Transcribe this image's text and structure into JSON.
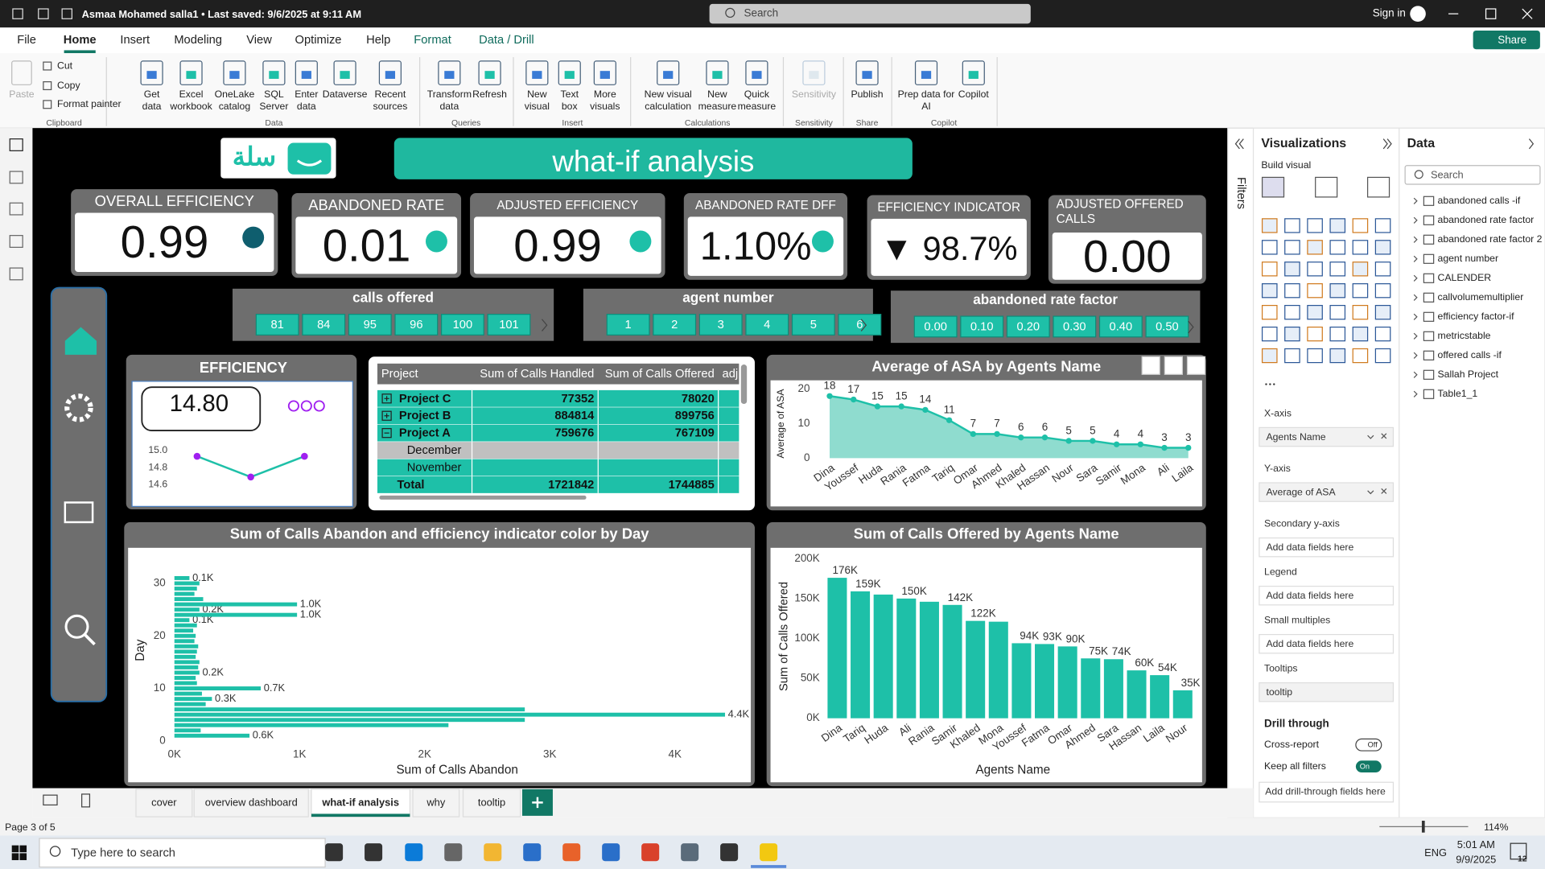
{
  "title_bar": {
    "file_status": "Asmaa Mohamed salla1 • Last saved: 9/6/2025 at 9:11 AM",
    "search": "Search",
    "sign_in": "Sign in"
  },
  "ribbon": {
    "tabs": [
      "File",
      "Home",
      "Insert",
      "Modeling",
      "View",
      "Optimize",
      "Help",
      "Format",
      "Data / Drill"
    ],
    "active_tab": 1,
    "share": "Share",
    "groups": [
      {
        "name": "Clipboard",
        "buttons": [
          [
            "Paste"
          ],
          [
            "Cut"
          ],
          [
            "Copy"
          ],
          [
            "Format painter"
          ]
        ]
      },
      {
        "name": "Data",
        "buttons": [
          [
            "Get",
            "data"
          ],
          [
            "Excel",
            "workbook"
          ],
          [
            "OneLake",
            "catalog"
          ],
          [
            "SQL",
            "Server"
          ],
          [
            "Enter",
            "data"
          ],
          [
            "Dataverse"
          ],
          [
            "Recent",
            "sources"
          ]
        ]
      },
      {
        "name": "Queries",
        "buttons": [
          [
            "Transform",
            "data"
          ],
          [
            "Refresh"
          ]
        ]
      },
      {
        "name": "Insert",
        "buttons": [
          [
            "New",
            "visual"
          ],
          [
            "Text",
            "box"
          ],
          [
            "More",
            "visuals"
          ]
        ]
      },
      {
        "name": "Calculations",
        "buttons": [
          [
            "New visual",
            "calculation"
          ],
          [
            "New",
            "measure"
          ],
          [
            "Quick",
            "measure"
          ]
        ]
      },
      {
        "name": "Sensitivity",
        "buttons": [
          [
            "Sensitivity"
          ]
        ]
      },
      {
        "name": "Share",
        "buttons": [
          [
            "Publish"
          ]
        ]
      },
      {
        "name": "Copilot",
        "buttons": [
          [
            "Prep data for",
            "AI"
          ],
          [
            "Copilot"
          ]
        ]
      }
    ]
  },
  "report": {
    "logo": "سلة",
    "title": "what-if analysis",
    "cards": [
      {
        "label": "OVERALL EFFICIENCY",
        "value": "0.99"
      },
      {
        "label": "ABANDONED RATE",
        "value": "0.01"
      },
      {
        "label": "ADJUSTED EFFICIENCY",
        "value": "0.99"
      },
      {
        "label": "ABANDONED RATE DFF",
        "value": "1.10%"
      },
      {
        "label": "EFFICIENCY INDICATOR",
        "value": "▼ 98.7%"
      },
      {
        "label": "ADJUSTED OFFERED CALLS",
        "value": "0.00"
      }
    ],
    "slicers": [
      {
        "title": "calls offered",
        "options": [
          "81",
          "84",
          "95",
          "96",
          "100",
          "101"
        ]
      },
      {
        "title": "agent number",
        "options": [
          "1",
          "2",
          "3",
          "4",
          "5",
          "6"
        ]
      },
      {
        "title": "abandoned rate factor",
        "options": [
          "0.00",
          "0.10",
          "0.20",
          "0.30",
          "0.40",
          "0.50"
        ]
      }
    ],
    "efficiency": {
      "title": "EFFICIENCY",
      "value": "14.80"
    },
    "table": {
      "columns": [
        "Project",
        "Sum of Calls Handled",
        "Sum of Calls Offered",
        "adj"
      ],
      "rows": [
        {
          "label": "Project C",
          "values": [
            77352,
            78020
          ],
          "expanded": false
        },
        {
          "label": "Project B",
          "values": [
            884814,
            899756
          ],
          "expanded": false
        },
        {
          "label": "Project A",
          "values": [
            759676,
            767109
          ],
          "expanded": true
        },
        {
          "label": "December"
        },
        {
          "label": "November"
        },
        {
          "label": "Total",
          "values": [
            1721842,
            1744885
          ]
        }
      ]
    }
  },
  "chart_data": [
    {
      "type": "line",
      "values": [
        14.93,
        14.69,
        14.93
      ],
      "ylim": [
        14.55,
        15.05
      ],
      "yticks": [
        {
          "value": 15,
          "label": "15.0"
        },
        14.8,
        14.6
      ],
      "color": "#1ec0a8",
      "marker_color": "#a020f0"
    },
    {
      "type": "area",
      "title": "Average of ASA by Agents Name",
      "y_label": "Average of ASA",
      "categories": [
        "Dina",
        "Youssef",
        "Huda",
        "Rania",
        "Fatma",
        "Tariq",
        "Omar",
        "Ahmed",
        "Khaled",
        "Hassan",
        "Nour",
        "Sara",
        "Samir",
        "Mona",
        "Ali",
        "Laila"
      ],
      "values": [
        18,
        17,
        15,
        15,
        14,
        11,
        7,
        7,
        6,
        6,
        5,
        5,
        4,
        4,
        3,
        3
      ],
      "ylim": [
        0,
        22
      ],
      "yticks": [
        0,
        10,
        20
      ],
      "color": "#1ec0a8",
      "area_color": "#8fdccf"
    },
    {
      "type": "barh",
      "title": "Sum of Calls Abandon and efficiency indicator color by Day",
      "x_label": "Sum of Calls Abandon",
      "y_label": "Day",
      "y": [
        1,
        2,
        3,
        4,
        5,
        6,
        7,
        8,
        9,
        10,
        11,
        12,
        13,
        14,
        15,
        16,
        17,
        18,
        19,
        20,
        21,
        22,
        23,
        24,
        25,
        26,
        27,
        28,
        29,
        30,
        31
      ],
      "values": [
        600,
        210,
        2190,
        2800,
        4400,
        2800,
        250,
        300,
        220,
        690,
        180,
        170,
        200,
        190,
        200,
        170,
        180,
        190,
        160,
        170,
        150,
        180,
        120,
        980,
        200,
        980,
        230,
        160,
        180,
        200,
        120
      ],
      "value_labels": [
        "0.6K",
        null,
        null,
        null,
        "4.4K",
        null,
        null,
        "0.3K",
        null,
        "0.7K",
        null,
        null,
        "0.2K",
        null,
        null,
        null,
        null,
        null,
        null,
        null,
        null,
        null,
        "0.1K",
        "1.0K",
        "0.2K",
        "1.0K",
        null,
        null,
        null,
        null,
        "0.1K"
      ],
      "xlim": [
        0,
        4500
      ],
      "xticks": [
        {
          "value": 0,
          "label": "0K"
        },
        {
          "value": 1000,
          "label": "1K"
        },
        {
          "value": 2000,
          "label": "2K"
        },
        {
          "value": 3000,
          "label": "3K"
        },
        {
          "value": 4000,
          "label": "4K"
        }
      ],
      "ylim": [
        -0.6,
        32
      ],
      "yticks": [
        0,
        10,
        20,
        30
      ],
      "color": "#1ec0a8"
    },
    {
      "type": "bar",
      "title": "Sum of Calls Offered by Agents Name",
      "x_label": "Agents Name",
      "y_label": "Sum of Calls Offered",
      "categories": [
        "Dina",
        "Tariq",
        "Huda",
        "Ali",
        "Rania",
        "Samir",
        "Khaled",
        "Mona",
        "Youssef",
        "Fatma",
        "Omar",
        "Ahmed",
        "Sara",
        "Hassan",
        "Laila",
        "Nour"
      ],
      "values": [
        176000,
        159000,
        155000,
        150000,
        146000,
        142000,
        122000,
        121000,
        94000,
        93000,
        90000,
        75000,
        74000,
        60000,
        54000,
        35000
      ],
      "value_labels": [
        "176K",
        "159K",
        null,
        "150K",
        null,
        "142K",
        "122K",
        null,
        "94K",
        "93K",
        "90K",
        "75K",
        "74K",
        "60K",
        "54K",
        "35K"
      ],
      "ylim": [
        0,
        200000
      ],
      "yticks": [
        {
          "value": 0,
          "label": "0K"
        },
        {
          "value": 50000,
          "label": "50K"
        },
        {
          "value": 100000,
          "label": "100K"
        },
        {
          "value": 150000,
          "label": "150K"
        },
        {
          "value": 200000,
          "label": "200K"
        }
      ],
      "color": "#1ec0a8"
    }
  ],
  "filters_pane": {
    "title": "Filters"
  },
  "visualizations": {
    "title": "Visualizations",
    "build_visual": "Build visual",
    "wells": [
      {
        "label": "X-axis",
        "field": "Agents Name"
      },
      {
        "label": "Y-axis",
        "field": "Average of ASA"
      },
      {
        "label": "Secondary y-axis",
        "placeholder": "Add data fields here"
      },
      {
        "label": "Legend",
        "placeholder": "Add data fields here"
      },
      {
        "label": "Small multiples",
        "placeholder": "Add data fields here"
      },
      {
        "label": "Tooltips",
        "field": "tooltip"
      }
    ],
    "drill_through": {
      "title": "Drill through",
      "cross_report": "Cross-report",
      "cross_report_state": "Off",
      "keep_all_filters": "Keep all filters",
      "keep_all_filters_state": "On",
      "add_fields": "Add drill-through fields here"
    }
  },
  "data_pane": {
    "title": "Data",
    "search": "Search",
    "tables": [
      "abandoned calls -if",
      "abandoned rate factor",
      "abandoned rate factor 2",
      "agent number",
      "CALENDER",
      "callvolumemultiplier",
      "efficiency factor-if",
      "metricstable",
      "offered calls -if",
      "Sallah Project",
      "Table1_1"
    ]
  },
  "page_tabs": {
    "tabs": [
      "cover",
      "overview dashboard",
      "what-if analysis",
      "why",
      "tooltip"
    ],
    "active": 2
  },
  "status_bar": {
    "page": "Page 3 of 5",
    "zoom": "114%"
  },
  "taskbar": {
    "search": "Type here to search",
    "language": "ENG",
    "time": "5:01 AM",
    "date": "9/9/2025",
    "notifications": "12"
  }
}
